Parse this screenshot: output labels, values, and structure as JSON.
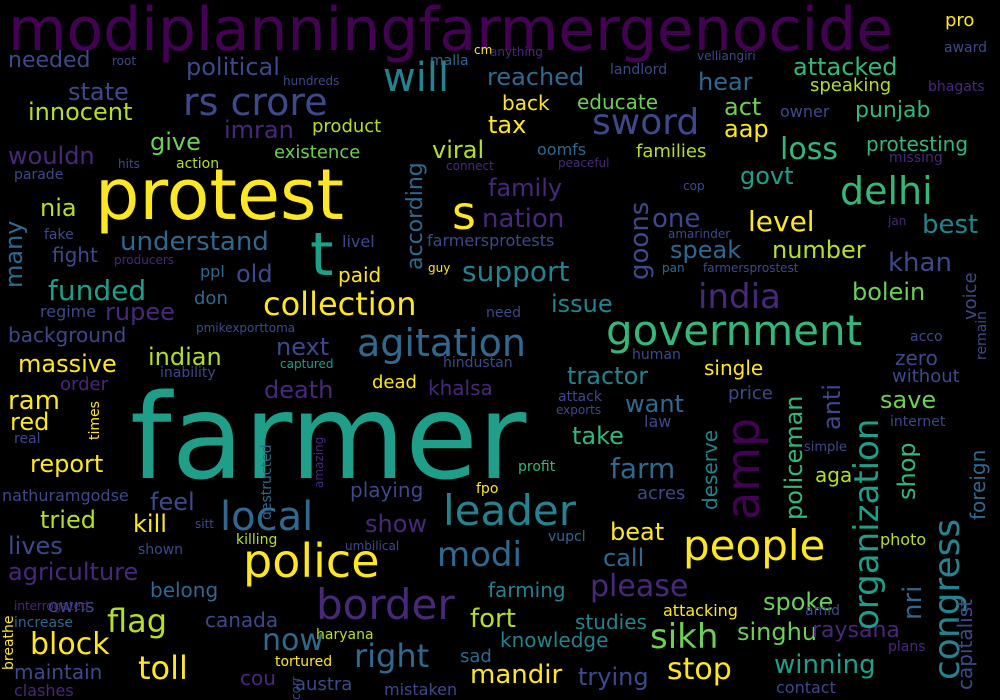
{
  "words": [
    {
      "text": "modiplanningfarmergenocide",
      "color": "#440154"
    },
    {
      "text": "farmer",
      "color": "#1f9e89"
    },
    {
      "text": "protest",
      "color": "#fde725"
    },
    {
      "text": "government",
      "color": "#35b779"
    },
    {
      "text": "police",
      "color": "#fde725"
    },
    {
      "text": "border",
      "color": "#482878"
    },
    {
      "text": "amp",
      "color": "#440154"
    },
    {
      "text": "people",
      "color": "#fde725"
    },
    {
      "text": "leader",
      "color": "#26828e"
    },
    {
      "text": "local",
      "color": "#31688e"
    },
    {
      "text": "agitation",
      "color": "#31688e"
    },
    {
      "text": "rs crore",
      "color": "#3e4989"
    },
    {
      "text": "india",
      "color": "#482878"
    },
    {
      "text": "delhi",
      "color": "#35b779"
    },
    {
      "text": "congress",
      "color": "#26828e"
    },
    {
      "text": "organization",
      "color": "#1f9e89"
    },
    {
      "text": "will",
      "color": "#26828e"
    },
    {
      "text": "sword",
      "color": "#3e4989"
    },
    {
      "text": "t",
      "color": "#1f9e89"
    },
    {
      "text": "s",
      "color": "#fde725"
    },
    {
      "text": "sikh",
      "color": "#6ece58"
    },
    {
      "text": "collection",
      "color": "#fde725"
    },
    {
      "text": "modi",
      "color": "#31688e"
    },
    {
      "text": "toll",
      "color": "#fde725"
    },
    {
      "text": "flag",
      "color": "#b5de2b"
    },
    {
      "text": "right",
      "color": "#31688e"
    },
    {
      "text": "support",
      "color": "#26828e"
    },
    {
      "text": "funded",
      "color": "#1f9e89"
    },
    {
      "text": "level",
      "color": "#fde725"
    },
    {
      "text": "loss",
      "color": "#35b779"
    },
    {
      "text": "goons",
      "color": "#3e4989"
    },
    {
      "text": "nation",
      "color": "#482878"
    },
    {
      "text": "innocent",
      "color": "#b5de2b"
    },
    {
      "text": "political",
      "color": "#3e4989"
    },
    {
      "text": "reached",
      "color": "#31688e"
    },
    {
      "text": "state",
      "color": "#3e4989"
    },
    {
      "text": "attacked",
      "color": "#35b779"
    },
    {
      "text": "hear",
      "color": "#31688e"
    },
    {
      "text": "punjab",
      "color": "#35b779"
    },
    {
      "text": "needed",
      "color": "#3e4989"
    },
    {
      "text": "imran",
      "color": "#482878"
    },
    {
      "text": "tax",
      "color": "#fde725"
    },
    {
      "text": "aap",
      "color": "#fde725"
    },
    {
      "text": "act",
      "color": "#6ece58"
    },
    {
      "text": "viral",
      "color": "#b5de2b"
    },
    {
      "text": "according",
      "color": "#31688e"
    },
    {
      "text": "family",
      "color": "#482878"
    },
    {
      "text": "give",
      "color": "#6ece58"
    },
    {
      "text": "wouldn",
      "color": "#482878"
    },
    {
      "text": "protesting",
      "color": "#35b779"
    },
    {
      "text": "govt",
      "color": "#1f9e89"
    },
    {
      "text": "best",
      "color": "#26828e"
    },
    {
      "text": "one",
      "color": "#3e4989"
    },
    {
      "text": "understand",
      "color": "#31688e"
    },
    {
      "text": "number",
      "color": "#b5de2b"
    },
    {
      "text": "khan",
      "color": "#3e4989"
    },
    {
      "text": "speak",
      "color": "#31688e"
    },
    {
      "text": "many",
      "color": "#31688e"
    },
    {
      "text": "nia",
      "color": "#b5de2b"
    },
    {
      "text": "fight",
      "color": "#3e4989"
    },
    {
      "text": "old",
      "color": "#3e4989"
    },
    {
      "text": "paid",
      "color": "#fde725"
    },
    {
      "text": "issue",
      "color": "#26828e"
    },
    {
      "text": "bolein",
      "color": "#6ece58"
    },
    {
      "text": "rupee",
      "color": "#482878"
    },
    {
      "text": "background",
      "color": "#3e4989"
    },
    {
      "text": "massive",
      "color": "#fde725"
    },
    {
      "text": "indian",
      "color": "#b5de2b"
    },
    {
      "text": "next",
      "color": "#3e4989"
    },
    {
      "text": "khalsa",
      "color": "#482878"
    },
    {
      "text": "death",
      "color": "#482878"
    },
    {
      "text": "tractor",
      "color": "#26828e"
    },
    {
      "text": "policeman",
      "color": "#35b779"
    },
    {
      "text": "anti",
      "color": "#3e4989"
    },
    {
      "text": "save",
      "color": "#6ece58"
    },
    {
      "text": "zero",
      "color": "#3e4989"
    },
    {
      "text": "without",
      "color": "#3e4989"
    },
    {
      "text": "ram",
      "color": "#fde725"
    },
    {
      "text": "red",
      "color": "#fde725"
    },
    {
      "text": "report",
      "color": "#fde725"
    },
    {
      "text": "take",
      "color": "#35b779"
    },
    {
      "text": "want",
      "color": "#31688e"
    },
    {
      "text": "farm",
      "color": "#31688e"
    },
    {
      "text": "single",
      "color": "#fde725"
    },
    {
      "text": "price",
      "color": "#3e4989"
    },
    {
      "text": "shop",
      "color": "#35b779"
    },
    {
      "text": "nri",
      "color": "#31688e"
    },
    {
      "text": "capitalist",
      "color": "#3e4989"
    },
    {
      "text": "foreign",
      "color": "#31688e"
    },
    {
      "text": "feel",
      "color": "#3e4989"
    },
    {
      "text": "kill",
      "color": "#fde725"
    },
    {
      "text": "tried",
      "color": "#b5de2b"
    },
    {
      "text": "show",
      "color": "#482878"
    },
    {
      "text": "beat",
      "color": "#fde725"
    },
    {
      "text": "call",
      "color": "#31688e"
    },
    {
      "text": "please",
      "color": "#482878"
    },
    {
      "text": "lives",
      "color": "#3e4989"
    },
    {
      "text": "agriculture",
      "color": "#482878"
    },
    {
      "text": "playing",
      "color": "#3e4989"
    },
    {
      "text": "belong",
      "color": "#31688e"
    },
    {
      "text": "canada",
      "color": "#3e4989"
    },
    {
      "text": "now",
      "color": "#31688e"
    },
    {
      "text": "fort",
      "color": "#b5de2b"
    },
    {
      "text": "studies",
      "color": "#26828e"
    },
    {
      "text": "spoke",
      "color": "#6ece58"
    },
    {
      "text": "singhu",
      "color": "#6ece58"
    },
    {
      "text": "raysana",
      "color": "#482878"
    },
    {
      "text": "block",
      "color": "#fde725"
    },
    {
      "text": "farming",
      "color": "#26828e"
    },
    {
      "text": "knowledge",
      "color": "#26828e"
    },
    {
      "text": "mandir",
      "color": "#fde725"
    },
    {
      "text": "trying",
      "color": "#3e4989"
    },
    {
      "text": "stop",
      "color": "#fde725"
    },
    {
      "text": "winning",
      "color": "#1f9e89"
    },
    {
      "text": "maintain",
      "color": "#3e4989"
    },
    {
      "text": "cou",
      "color": "#482878"
    },
    {
      "text": "austra",
      "color": "#3e4989"
    },
    {
      "text": "sad",
      "color": "#31688e"
    },
    {
      "text": "acres",
      "color": "#3e4989"
    },
    {
      "text": "deserve",
      "color": "#26828e"
    },
    {
      "text": "aga",
      "color": "#b5de2b"
    },
    {
      "text": "photo",
      "color": "#b5de2b"
    },
    {
      "text": "owns",
      "color": "#3e4989"
    },
    {
      "text": "clashes",
      "color": "#482878"
    },
    {
      "text": "mistaken",
      "color": "#3e4989"
    },
    {
      "text": "contact",
      "color": "#3e4989"
    },
    {
      "text": "tortured",
      "color": "#fde725"
    },
    {
      "text": "haryana",
      "color": "#b5de2b"
    },
    {
      "text": "attacking",
      "color": "#fde725"
    },
    {
      "text": "amid",
      "color": "#3e4989"
    },
    {
      "text": "plans",
      "color": "#482878"
    },
    {
      "text": "remain",
      "color": "#3e4989"
    },
    {
      "text": "voice",
      "color": "#3e4989"
    },
    {
      "text": "acco",
      "color": "#3e4989"
    },
    {
      "text": "internet",
      "color": "#3e4989"
    },
    {
      "text": "simple",
      "color": "#3e4989"
    },
    {
      "text": "breathe",
      "color": "#fde725"
    },
    {
      "text": "increase",
      "color": "#31688e"
    },
    {
      "text": "interrogated",
      "color": "#482878"
    },
    {
      "text": "corr",
      "color": "#3e4989"
    },
    {
      "text": "sitt",
      "color": "#3e4989"
    },
    {
      "text": "shown",
      "color": "#3e4989"
    },
    {
      "text": "killing",
      "color": "#b5de2b"
    },
    {
      "text": "umbilical",
      "color": "#3e4989"
    },
    {
      "text": "vupcl",
      "color": "#31688e"
    },
    {
      "text": "fpo",
      "color": "#fde725"
    },
    {
      "text": "profit",
      "color": "#35b779"
    },
    {
      "text": "destructed",
      "color": "#31688e"
    },
    {
      "text": "amazing",
      "color": "#482878"
    },
    {
      "text": "nathuramgodse",
      "color": "#3e4989"
    },
    {
      "text": "real",
      "color": "#3e4989"
    },
    {
      "text": "times",
      "color": "#fde725"
    },
    {
      "text": "attack",
      "color": "#3e4989"
    },
    {
      "text": "exports",
      "color": "#3e4989"
    },
    {
      "text": "law",
      "color": "#3e4989"
    },
    {
      "text": "hindustan",
      "color": "#3e4989"
    },
    {
      "text": "human",
      "color": "#3e4989"
    },
    {
      "text": "dead",
      "color": "#fde725"
    },
    {
      "text": "captured",
      "color": "#1f9e89"
    },
    {
      "text": "inability",
      "color": "#3e4989"
    },
    {
      "text": "order",
      "color": "#482878"
    },
    {
      "text": "regime",
      "color": "#3e4989"
    },
    {
      "text": "pmikexporttoma",
      "color": "#3e4989"
    },
    {
      "text": "don",
      "color": "#31688e"
    },
    {
      "text": "ppl",
      "color": "#31688e"
    },
    {
      "text": "guy",
      "color": "#fde725"
    },
    {
      "text": "need",
      "color": "#3e4989"
    },
    {
      "text": "producers",
      "color": "#482878"
    },
    {
      "text": "fake",
      "color": "#3e4989"
    },
    {
      "text": "livel",
      "color": "#3e4989"
    },
    {
      "text": "farmersprotests",
      "color": "#3e4989"
    },
    {
      "text": "amarinder",
      "color": "#3e4989"
    },
    {
      "text": "pan",
      "color": "#31688e"
    },
    {
      "text": "farmersprostest",
      "color": "#3e4989"
    },
    {
      "text": "jan",
      "color": "#482878"
    },
    {
      "text": "cop",
      "color": "#3e4989"
    },
    {
      "text": "peaceful",
      "color": "#482878"
    },
    {
      "text": "connect",
      "color": "#482878"
    },
    {
      "text": "oomfs",
      "color": "#31688e"
    },
    {
      "text": "families",
      "color": "#b5de2b"
    },
    {
      "text": "missing",
      "color": "#482878"
    },
    {
      "text": "parade",
      "color": "#3e4989"
    },
    {
      "text": "hits",
      "color": "#3e4989"
    },
    {
      "text": "action",
      "color": "#b5de2b"
    },
    {
      "text": "existence",
      "color": "#6ece58"
    },
    {
      "text": "product",
      "color": "#b5de2b"
    },
    {
      "text": "educate",
      "color": "#6ece58"
    },
    {
      "text": "back",
      "color": "#fde725"
    },
    {
      "text": "owner",
      "color": "#3e4989"
    },
    {
      "text": "speaking",
      "color": "#b5de2b"
    },
    {
      "text": "bhagats",
      "color": "#482878"
    },
    {
      "text": "hundreds",
      "color": "#3e4989"
    },
    {
      "text": "root",
      "color": "#3e4989"
    },
    {
      "text": "malla",
      "color": "#31688e"
    },
    {
      "text": "landlord",
      "color": "#3e4989"
    },
    {
      "text": "velliangiri",
      "color": "#3e4989"
    },
    {
      "text": "cm",
      "color": "#fde725"
    },
    {
      "text": "anything",
      "color": "#482878"
    },
    {
      "text": "award",
      "color": "#3e4989"
    },
    {
      "text": "pro",
      "color": "#fde725"
    }
  ]
}
